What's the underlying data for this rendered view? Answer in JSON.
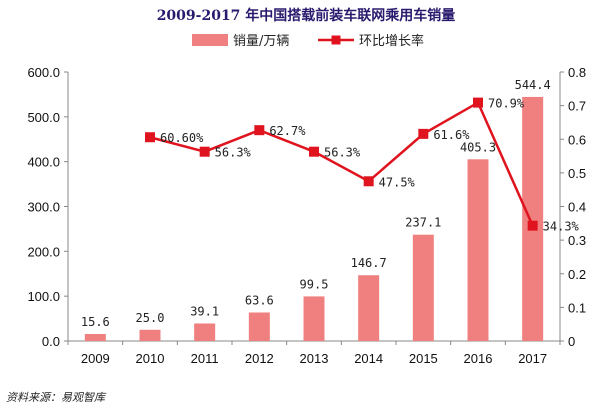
{
  "chart_data": {
    "type": "bar+line",
    "title": "2009-2017 年中国搭载前装车联网乘用车销量",
    "categories": [
      "2009",
      "2010",
      "2011",
      "2012",
      "2013",
      "2014",
      "2015",
      "2016",
      "2017"
    ],
    "series": [
      {
        "name": "销量/万辆",
        "kind": "bar",
        "axis": "left",
        "color": "#f08080",
        "values": [
          15.6,
          25.0,
          39.1,
          63.6,
          99.5,
          146.7,
          237.1,
          405.3,
          544.4
        ],
        "labels": [
          "15.6",
          "25.0",
          "39.1",
          "63.6",
          "99.5",
          "146.7",
          "237.1",
          "405.3",
          "544.4"
        ]
      },
      {
        "name": "环比增长率",
        "kind": "line",
        "axis": "right",
        "color": "#e0141e",
        "values": [
          null,
          0.606,
          0.563,
          0.627,
          0.563,
          0.475,
          0.616,
          0.709,
          0.343
        ],
        "labels": [
          "",
          "60.60%",
          "56.3%",
          "62.7%",
          "56.3%",
          "47.5%",
          "61.6%",
          "70.9%",
          "34.3%"
        ]
      }
    ],
    "yleft": {
      "min": 0,
      "max": 600,
      "step": 100,
      "ticks": [
        "0.0",
        "100.0",
        "200.0",
        "300.0",
        "400.0",
        "500.0",
        "600.0"
      ]
    },
    "yright": {
      "min": 0,
      "max": 0.8,
      "step": 0.1,
      "ticks": [
        "0",
        "0.1",
        "0.2",
        "0.3",
        "0.4",
        "0.5",
        "0.6",
        "0.7",
        "0.8"
      ]
    },
    "legend_position": "top-right",
    "grid": false,
    "source": "资料来源：易观智库"
  }
}
